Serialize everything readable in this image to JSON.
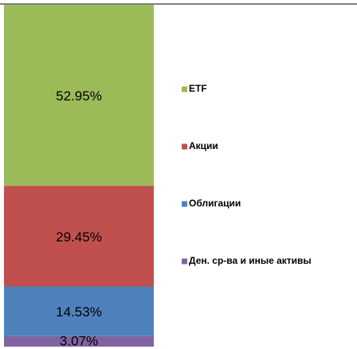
{
  "chart_data": {
    "type": "stacked_bar",
    "ylim": [
      0,
      100
    ],
    "series": [
      {
        "name": "ETF",
        "color": "#9bbb59",
        "values": [
          52.95
        ],
        "value_labels": [
          "52.95%"
        ]
      },
      {
        "name": "Акции",
        "color": "#c0504d",
        "values": [
          29.45
        ],
        "value_labels": [
          "29.45%"
        ]
      },
      {
        "name": "Облигации",
        "color": "#4f81bd",
        "values": [
          14.53
        ],
        "value_labels": [
          "14.53%"
        ]
      },
      {
        "name": "Ден. ср-ва и иные активы",
        "color": "#8064a2",
        "values": [
          3.07
        ],
        "value_labels": [
          "3.07%"
        ]
      }
    ]
  }
}
